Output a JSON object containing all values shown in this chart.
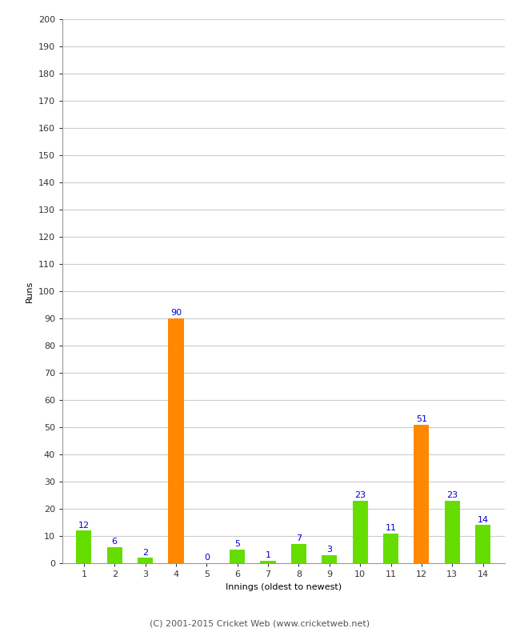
{
  "categories": [
    1,
    2,
    3,
    4,
    5,
    6,
    7,
    8,
    9,
    10,
    11,
    12,
    13,
    14
  ],
  "values": [
    12,
    6,
    2,
    90,
    0,
    5,
    1,
    7,
    3,
    23,
    11,
    51,
    23,
    14
  ],
  "bar_colors": [
    "#66dd00",
    "#66dd00",
    "#66dd00",
    "#ff8800",
    "#66dd00",
    "#66dd00",
    "#66dd00",
    "#66dd00",
    "#66dd00",
    "#66dd00",
    "#66dd00",
    "#ff8800",
    "#66dd00",
    "#66dd00"
  ],
  "xlabel": "Innings (oldest to newest)",
  "ylabel": "Runs",
  "ylim": [
    0,
    200
  ],
  "yticks": [
    0,
    10,
    20,
    30,
    40,
    50,
    60,
    70,
    80,
    90,
    100,
    110,
    120,
    130,
    140,
    150,
    160,
    170,
    180,
    190,
    200
  ],
  "label_color": "#0000cc",
  "label_fontsize": 8,
  "axis_label_fontsize": 8,
  "tick_fontsize": 8,
  "background_color": "#ffffff",
  "plot_bg_color": "#ffffff",
  "grid_color": "#cccccc",
  "footer": "(C) 2001-2015 Cricket Web (www.cricketweb.net)"
}
